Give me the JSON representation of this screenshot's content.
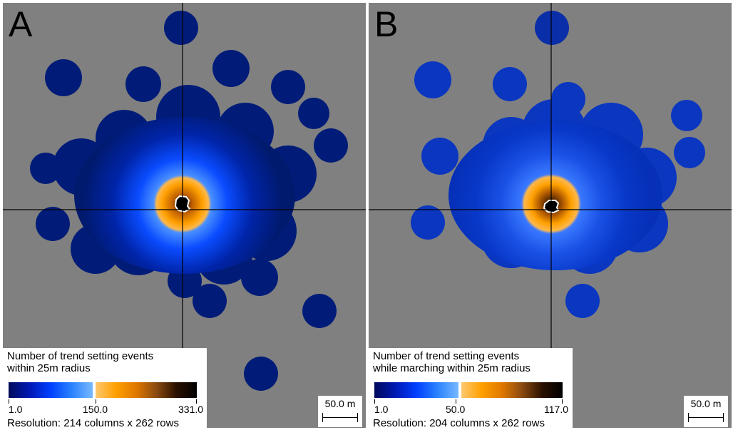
{
  "panels": [
    {
      "letter": "A",
      "legend_title": "Number of trend setting events\nwithin 25m radius",
      "legend_min": "1.0",
      "legend_mid": "150.0",
      "legend_max": "331.0",
      "resolution": "Resolution: 214 columns x 262 rows",
      "scale_label": "50.0 m"
    },
    {
      "letter": "B",
      "legend_title": "Number of trend setting events\nwhile marching within 25m radius",
      "legend_min": "1.0",
      "legend_mid": "50.0",
      "legend_max": "117.0",
      "resolution": "Resolution: 204 columns x 262 rows",
      "scale_label": "50.0 m"
    }
  ],
  "colors": {
    "background": "#808080",
    "low_dark": "#000a5a",
    "mid_blue": "#0040ff",
    "light_blue": "#78b8ff",
    "orange": "#ffa000",
    "dark_core": "#000000",
    "crosshair": "#000000"
  }
}
